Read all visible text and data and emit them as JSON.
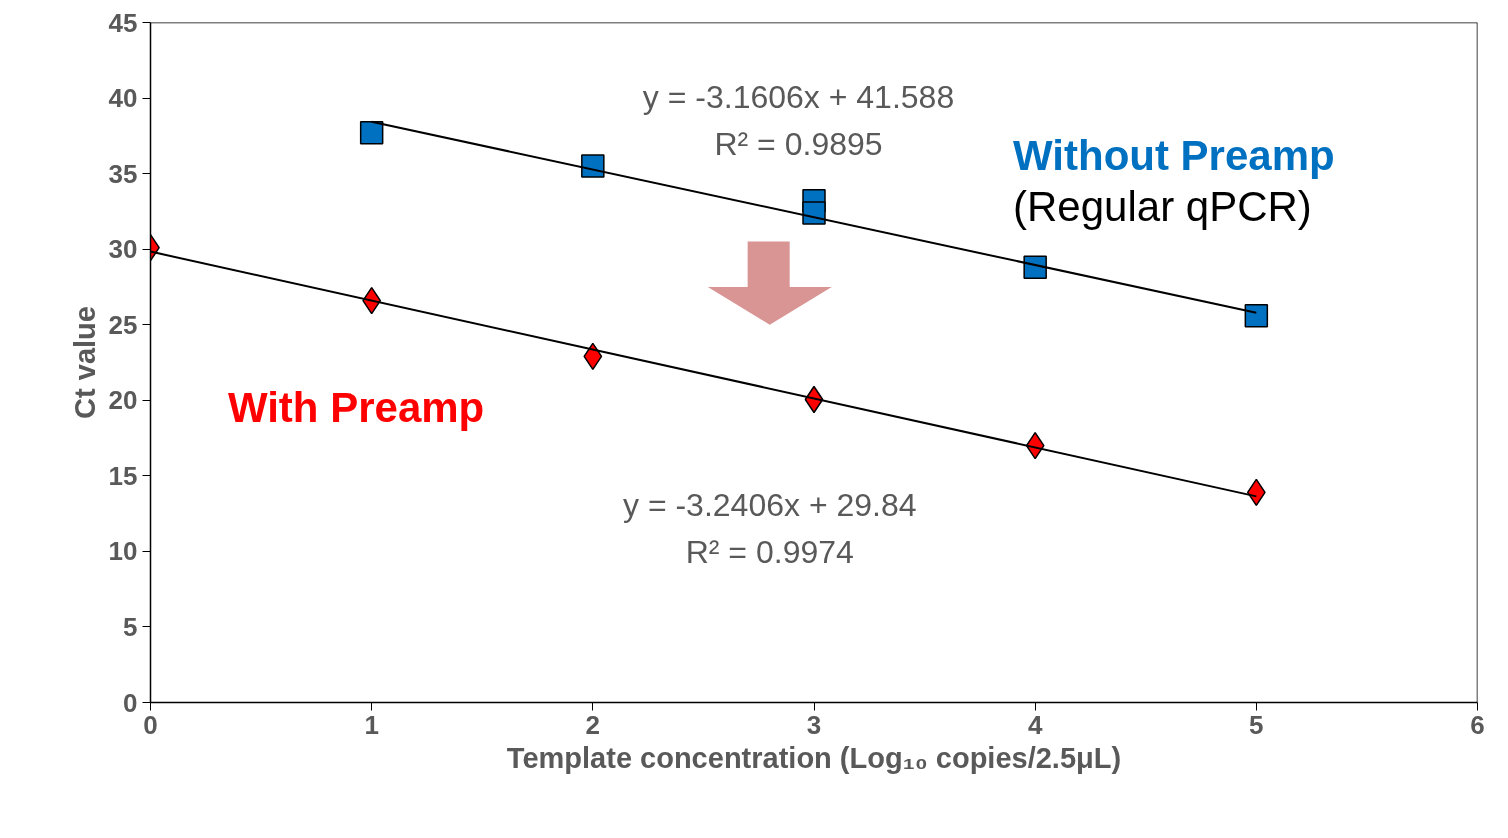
{
  "chart_data": {
    "type": "scatter",
    "xlabel": "Template concentration (Log₁₀ copies/2.5μL)",
    "ylabel": "Ct value",
    "xlim": [
      0,
      6
    ],
    "xticks": [
      0,
      1,
      2,
      3,
      4,
      5,
      6
    ],
    "ylim": [
      0,
      45
    ],
    "yticks": [
      0,
      5,
      10,
      15,
      20,
      25,
      30,
      35,
      40,
      45
    ],
    "grid": false,
    "legend": false,
    "series": [
      {
        "name": "Without Preamp",
        "color": "#0070c0",
        "marker": "square",
        "x": [
          1,
          2,
          3,
          3,
          4,
          5
        ],
        "values": [
          37.7,
          35.5,
          33.2,
          32.4,
          28.8,
          25.6
        ]
      },
      {
        "name": "With Preamp",
        "color": "#ff0000",
        "marker": "diamond",
        "x": [
          0,
          1,
          2,
          3,
          4,
          5
        ],
        "values": [
          30.1,
          26.6,
          22.9,
          20.05,
          17.0,
          13.9
        ]
      },
      {
        "type": "line",
        "color": "#000000",
        "marker": "none",
        "x": [
          1,
          5
        ],
        "values": [
          38.43,
          25.79
        ]
      },
      {
        "type": "line",
        "color": "#000000",
        "marker": "none",
        "x": [
          0,
          5
        ],
        "values": [
          29.84,
          13.64
        ]
      }
    ],
    "annotations": [
      "y = -3.1606x + 41.588\nR² = 0.9895",
      "y = -3.2406x + 29.84\nR² = 0.9974",
      "(Regular qPCR)"
    ]
  }
}
